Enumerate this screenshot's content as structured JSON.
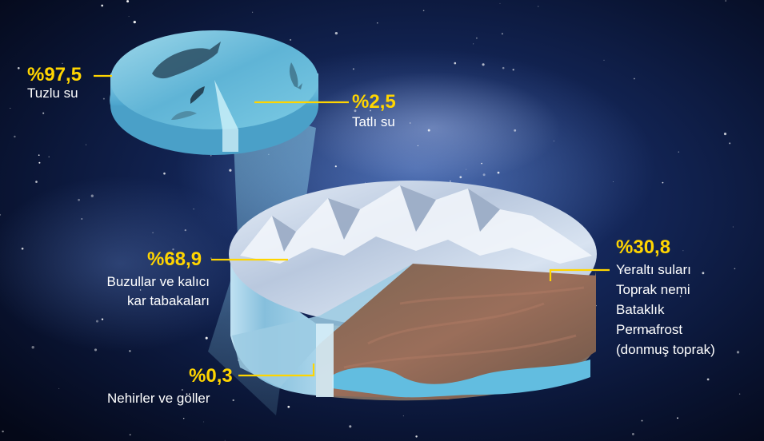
{
  "colors": {
    "accent": "#ffd500",
    "text": "#ffffff",
    "background": "#050b1f"
  },
  "ocean": {
    "salt_water": {
      "percent": "%97,5",
      "label": "Tuzlu su",
      "share": 97.5
    },
    "fresh_water": {
      "percent": "%2,5",
      "label": "Tatlı su",
      "share": 2.5
    }
  },
  "fresh": {
    "glaciers": {
      "percent": "%68,9",
      "label_line1": "Buzullar ve kalıcı",
      "label_line2": "kar tabakaları",
      "share": 68.9
    },
    "groundwater": {
      "percent": "%30,8",
      "label_line1": "Yeraltı suları",
      "label_line2": "Toprak nemi",
      "label_line3": "Bataklık",
      "label_line4": "Permafrost",
      "label_line5": "(donmuş toprak)",
      "share": 30.8
    },
    "rivers": {
      "percent": "%0,3",
      "label": "Nehirler ve göller",
      "share": 0.3
    }
  }
}
